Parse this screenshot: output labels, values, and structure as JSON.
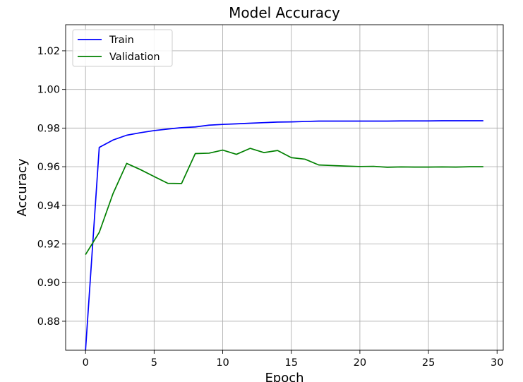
{
  "chart_data": {
    "type": "line",
    "title": "Model Accuracy",
    "xlabel": "Epoch",
    "ylabel": "Accuracy",
    "xlim": [
      -1.45,
      30.45
    ],
    "ylim": [
      0.865,
      1.0335
    ],
    "xticks": [
      0,
      5,
      10,
      15,
      20,
      25,
      30
    ],
    "yticks": [
      0.88,
      0.9,
      0.92,
      0.94,
      0.96,
      0.98,
      1.0,
      1.02
    ],
    "xtick_labels": [
      "0",
      "5",
      "10",
      "15",
      "20",
      "25",
      "30"
    ],
    "ytick_labels": [
      "0.88",
      "0.90",
      "0.92",
      "0.94",
      "0.96",
      "0.98",
      "1.00",
      "1.02"
    ],
    "grid": true,
    "legend_position": "top-left",
    "x": [
      0,
      1,
      2,
      3,
      4,
      5,
      6,
      7,
      8,
      9,
      10,
      11,
      12,
      13,
      14,
      15,
      16,
      17,
      18,
      19,
      20,
      21,
      22,
      23,
      24,
      25,
      26,
      27,
      28,
      29
    ],
    "series": [
      {
        "name": "Train",
        "color": "#0000ff",
        "values": [
          0.865,
          0.97,
          0.9738,
          0.9763,
          0.9776,
          0.9787,
          0.9795,
          0.9802,
          0.9806,
          0.9815,
          0.9819,
          0.9822,
          0.9825,
          0.9828,
          0.9831,
          0.9832,
          0.9834,
          0.9836,
          0.9836,
          0.9836,
          0.9836,
          0.9836,
          0.9836,
          0.9837,
          0.9837,
          0.9837,
          0.9838,
          0.9838,
          0.9838,
          0.9838
        ]
      },
      {
        "name": "Validation",
        "color": "#008000",
        "values": [
          0.9145,
          0.926,
          0.946,
          0.9617,
          0.9585,
          0.9549,
          0.9514,
          0.9513,
          0.9668,
          0.967,
          0.9686,
          0.9664,
          0.9695,
          0.9673,
          0.9684,
          0.9647,
          0.9639,
          0.9609,
          0.9606,
          0.9603,
          0.9601,
          0.9602,
          0.9597,
          0.9599,
          0.9598,
          0.9598,
          0.9599,
          0.9598,
          0.96,
          0.96
        ]
      }
    ]
  }
}
